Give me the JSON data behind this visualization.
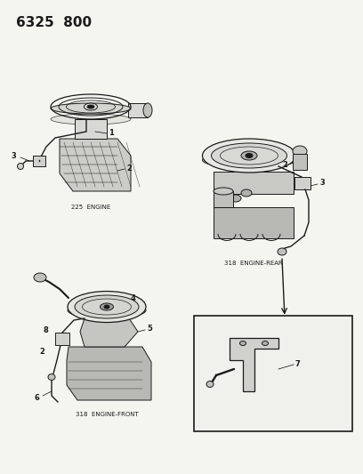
{
  "title": "6325  800",
  "background_color": "#f5f5f0",
  "line_color": "#1a1a1a",
  "label_225_engine": "225  ENGINE",
  "label_318_rear": "318  ENGINE-REAR",
  "label_318_front": "318  ENGINE-FRONT",
  "fig_width": 4.08,
  "fig_height": 5.33,
  "dpi": 100,
  "title_fontsize": 11,
  "label_fontsize": 5,
  "num_fontsize": 6
}
